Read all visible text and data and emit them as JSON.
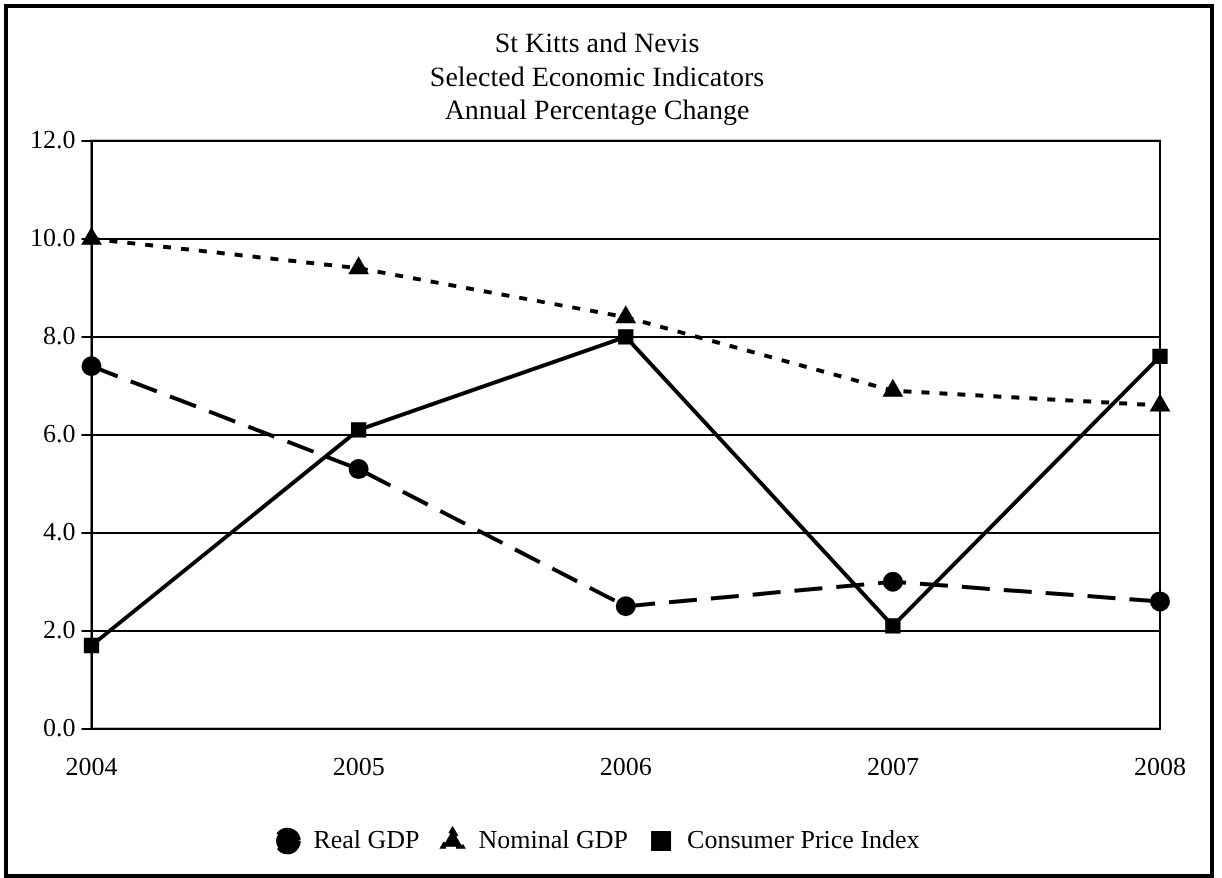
{
  "chart_data": {
    "type": "line",
    "title": "St Kitts and Nevis\nSelected Economic Indicators\nAnnual Percentage Change",
    "categories": [
      "2004",
      "2005",
      "2006",
      "2007",
      "2008"
    ],
    "series": [
      {
        "name": "Real GDP",
        "color": "#000000",
        "values": [
          7.4,
          5.3,
          2.5,
          3.0,
          2.6
        ],
        "marker": "circle",
        "line_style": "dashed"
      },
      {
        "name": "Nominal GDP",
        "color": "#000000",
        "values": [
          10.0,
          9.4,
          8.4,
          6.9,
          6.6
        ],
        "marker": "triangle",
        "line_style": "dotted"
      },
      {
        "name": "Consumer Price Index",
        "color": "#000000",
        "values": [
          1.7,
          6.1,
          8.0,
          2.1,
          7.6
        ],
        "marker": "square",
        "line_style": "solid"
      }
    ],
    "ylim": [
      0,
      12
    ],
    "yticks": [
      {
        "value": 0,
        "label": "0.0"
      },
      {
        "value": 2,
        "label": "2.0"
      },
      {
        "value": 4,
        "label": "4.0"
      },
      {
        "value": 6,
        "label": "6.0"
      },
      {
        "value": 8,
        "label": "8.0"
      },
      {
        "value": 10,
        "label": "10.0"
      },
      {
        "value": 12,
        "label": "12.0"
      }
    ],
    "grid": "y",
    "legend": "bottom"
  }
}
